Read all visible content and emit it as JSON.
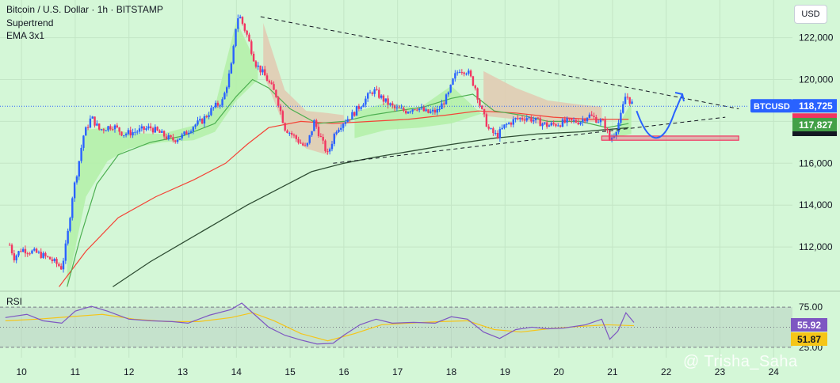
{
  "header": {
    "title": "Bitcoin / U.S. Dollar · 1h · BITSTAMP",
    "indicator_1": "Supertrend",
    "indicator_2": "EMA 3x1"
  },
  "currency_button": "USD",
  "rsi_label": "RSI",
  "watermark": "@ Trisha_Saha",
  "colors": {
    "background": "#d4f7d7",
    "up_candle": "#2962ff",
    "down_candle": "#f23661",
    "ema_fast": "#4caf50",
    "ema_mid": "#f44336",
    "ema_slow": "#2e4d33",
    "rsi_line": "#7e57c2",
    "rsi_ma": "#f5c518",
    "supertrend_up_fill": "#b3f0a8",
    "supertrend_down_fill": "#e2c9b2",
    "projection": "#2962ff"
  },
  "chart_data": {
    "type": "candlestick",
    "symbol": "BTCUSD",
    "x_ticks": [
      "10",
      "11",
      "12",
      "13",
      "14",
      "15",
      "16",
      "17",
      "18",
      "19",
      "20",
      "21",
      "22",
      "23",
      "24"
    ],
    "y_ticks": [
      "122,000",
      "120,000",
      "118,000",
      "116,000",
      "114,000",
      "112,000"
    ],
    "ylim": [
      110000,
      123800
    ],
    "xlim": [
      9.6,
      24.35
    ],
    "price_path": [
      [
        9.78,
        112100
      ],
      [
        9.86,
        111500
      ],
      [
        10.0,
        111900
      ],
      [
        10.3,
        111700
      ],
      [
        10.55,
        111400
      ],
      [
        10.75,
        111000
      ],
      [
        10.85,
        112400
      ],
      [
        10.95,
        114500
      ],
      [
        11.05,
        115800
      ],
      [
        11.15,
        117300
      ],
      [
        11.3,
        118200
      ],
      [
        11.45,
        117600
      ],
      [
        11.7,
        117800
      ],
      [
        11.9,
        117400
      ],
      [
        12.1,
        117500
      ],
      [
        12.4,
        117700
      ],
      [
        12.6,
        117400
      ],
      [
        12.8,
        117100
      ],
      [
        13.0,
        117300
      ],
      [
        13.2,
        117800
      ],
      [
        13.35,
        118000
      ],
      [
        13.55,
        118600
      ],
      [
        13.75,
        119000
      ],
      [
        13.92,
        120800
      ],
      [
        14.0,
        122800
      ],
      [
        14.05,
        123100
      ],
      [
        14.2,
        122100
      ],
      [
        14.35,
        120800
      ],
      [
        14.55,
        120100
      ],
      [
        14.75,
        119200
      ],
      [
        14.9,
        117700
      ],
      [
        15.1,
        117200
      ],
      [
        15.3,
        116700
      ],
      [
        15.45,
        118000
      ],
      [
        15.6,
        117000
      ],
      [
        15.7,
        116400
      ],
      [
        15.85,
        117600
      ],
      [
        16.0,
        118000
      ],
      [
        16.15,
        118300
      ],
      [
        16.35,
        118900
      ],
      [
        16.55,
        119500
      ],
      [
        16.75,
        119000
      ],
      [
        16.95,
        118600
      ],
      [
        17.15,
        118500
      ],
      [
        17.35,
        118700
      ],
      [
        17.55,
        118400
      ],
      [
        17.75,
        118500
      ],
      [
        17.95,
        119300
      ],
      [
        18.05,
        120100
      ],
      [
        18.15,
        120500
      ],
      [
        18.3,
        120400
      ],
      [
        18.45,
        119600
      ],
      [
        18.55,
        118600
      ],
      [
        18.7,
        117600
      ],
      [
        18.85,
        117300
      ],
      [
        19.0,
        117800
      ],
      [
        19.2,
        118100
      ],
      [
        19.4,
        118200
      ],
      [
        19.6,
        118000
      ],
      [
        19.8,
        117800
      ],
      [
        20.0,
        117900
      ],
      [
        20.2,
        118000
      ],
      [
        20.4,
        118000
      ],
      [
        20.55,
        118300
      ],
      [
        20.7,
        118100
      ],
      [
        20.85,
        117900
      ],
      [
        20.95,
        117100
      ],
      [
        21.05,
        117500
      ],
      [
        21.15,
        118200
      ],
      [
        21.25,
        119300
      ],
      [
        21.32,
        119000
      ],
      [
        21.4,
        118725
      ]
    ],
    "ema_fast": [
      [
        10.85,
        110100
      ],
      [
        11.1,
        112500
      ],
      [
        11.4,
        115000
      ],
      [
        11.8,
        116400
      ],
      [
        12.4,
        117000
      ],
      [
        13.0,
        117300
      ],
      [
        13.6,
        117900
      ],
      [
        14.0,
        119200
      ],
      [
        14.3,
        120000
      ],
      [
        14.6,
        119600
      ],
      [
        15.0,
        118600
      ],
      [
        15.5,
        117900
      ],
      [
        16.0,
        118000
      ],
      [
        16.5,
        118300
      ],
      [
        17.0,
        118500
      ],
      [
        17.5,
        118700
      ],
      [
        18.0,
        119100
      ],
      [
        18.4,
        119300
      ],
      [
        18.8,
        118500
      ],
      [
        19.3,
        118300
      ],
      [
        19.8,
        118000
      ],
      [
        20.4,
        118000
      ],
      [
        20.9,
        117700
      ],
      [
        21.3,
        117900
      ]
    ],
    "ema_mid": [
      [
        10.7,
        110100
      ],
      [
        11.2,
        111800
      ],
      [
        11.8,
        113400
      ],
      [
        12.5,
        114400
      ],
      [
        13.2,
        115200
      ],
      [
        13.8,
        116000
      ],
      [
        14.2,
        116900
      ],
      [
        14.6,
        117700
      ],
      [
        15.2,
        118000
      ],
      [
        15.8,
        117900
      ],
      [
        16.5,
        118000
      ],
      [
        17.2,
        118100
      ],
      [
        17.9,
        118300
      ],
      [
        18.5,
        118500
      ],
      [
        19.2,
        118400
      ],
      [
        19.9,
        118200
      ],
      [
        20.6,
        118100
      ],
      [
        21.3,
        118100
      ]
    ],
    "ema_slow": [
      [
        11.7,
        110100
      ],
      [
        12.4,
        111300
      ],
      [
        13.0,
        112200
      ],
      [
        13.6,
        113100
      ],
      [
        14.2,
        114000
      ],
      [
        14.8,
        114800
      ],
      [
        15.4,
        115600
      ],
      [
        16.0,
        116000
      ],
      [
        16.6,
        116300
      ],
      [
        17.3,
        116600
      ],
      [
        18.0,
        116900
      ],
      [
        18.8,
        117200
      ],
      [
        19.6,
        117400
      ],
      [
        20.4,
        117500
      ],
      [
        21.3,
        117700
      ]
    ],
    "supertrend_bands": [
      {
        "trend": "up",
        "x": [
          10.85,
          11.2,
          11.6,
          12.0,
          12.6,
          13.2,
          13.6,
          14.0,
          14.4
        ],
        "level": [
          110100,
          114400,
          116100,
          116700,
          117000,
          117100,
          117500,
          119000,
          120000
        ]
      },
      {
        "trend": "down",
        "x": [
          14.5,
          14.9,
          15.3,
          15.7,
          16.0
        ],
        "level": [
          122700,
          119500,
          118500,
          118400,
          118300
        ]
      },
      {
        "trend": "up",
        "x": [
          16.2,
          16.8,
          17.4,
          18.0,
          18.6
        ],
        "level": [
          117200,
          117600,
          117700,
          117900,
          118400
        ]
      },
      {
        "trend": "down",
        "x": [
          18.6,
          19.2,
          19.8,
          20.4,
          20.8
        ],
        "level": [
          120400,
          119600,
          119000,
          118800,
          118700
        ]
      },
      {
        "trend": "up",
        "x": [
          21.0,
          21.35
        ],
        "level": [
          117200,
          117400
        ]
      }
    ],
    "trendlines": [
      {
        "name": "upper",
        "x": [
          14.45,
          23.35
        ],
        "y": [
          123000,
          118600
        ]
      },
      {
        "name": "lower",
        "x": [
          15.8,
          23.1
        ],
        "y": [
          116000,
          118200
        ]
      }
    ],
    "support_zone": {
      "x": [
        20.8,
        23.35
      ],
      "y": [
        117100,
        117300
      ]
    },
    "projection_path": [
      [
        21.45,
        118500
      ],
      [
        21.7,
        117300
      ],
      [
        21.95,
        117400
      ],
      [
        22.15,
        118400
      ],
      [
        22.3,
        119300
      ]
    ],
    "last_price": {
      "symbol": "BTCUSD",
      "value": "118,725"
    },
    "price_levels": [
      {
        "value": "117,827",
        "color": "#43a047"
      }
    ],
    "rsi": {
      "levels": [
        75,
        50,
        25
      ],
      "tick_labels": [
        "75.00",
        "25.00"
      ],
      "current_rsi": "55.92",
      "current_ma": "51.87",
      "rsi_path": [
        [
          9.7,
          62
        ],
        [
          10.1,
          66
        ],
        [
          10.4,
          58
        ],
        [
          10.75,
          55
        ],
        [
          11.0,
          70
        ],
        [
          11.3,
          76
        ],
        [
          11.6,
          70
        ],
        [
          12.0,
          60
        ],
        [
          12.4,
          58
        ],
        [
          12.8,
          57
        ],
        [
          13.1,
          55
        ],
        [
          13.5,
          65
        ],
        [
          13.9,
          72
        ],
        [
          14.1,
          80
        ],
        [
          14.35,
          65
        ],
        [
          14.6,
          50
        ],
        [
          14.9,
          40
        ],
        [
          15.2,
          34
        ],
        [
          15.5,
          29
        ],
        [
          15.8,
          30
        ],
        [
          16.0,
          40
        ],
        [
          16.3,
          53
        ],
        [
          16.6,
          60
        ],
        [
          16.9,
          55
        ],
        [
          17.3,
          56
        ],
        [
          17.7,
          55
        ],
        [
          18.0,
          63
        ],
        [
          18.3,
          60
        ],
        [
          18.6,
          44
        ],
        [
          18.9,
          36
        ],
        [
          19.2,
          47
        ],
        [
          19.5,
          50
        ],
        [
          19.8,
          48
        ],
        [
          20.1,
          49
        ],
        [
          20.5,
          53
        ],
        [
          20.8,
          60
        ],
        [
          20.95,
          35
        ],
        [
          21.1,
          45
        ],
        [
          21.25,
          68
        ],
        [
          21.4,
          55.92
        ]
      ],
      "ma_path": [
        [
          9.7,
          58
        ],
        [
          10.3,
          60
        ],
        [
          10.9,
          63
        ],
        [
          11.5,
          66
        ],
        [
          12.1,
          60
        ],
        [
          12.7,
          57
        ],
        [
          13.3,
          57
        ],
        [
          13.9,
          62
        ],
        [
          14.3,
          68
        ],
        [
          14.7,
          58
        ],
        [
          15.2,
          42
        ],
        [
          15.7,
          33
        ],
        [
          16.2,
          42
        ],
        [
          16.7,
          53
        ],
        [
          17.2,
          55
        ],
        [
          17.8,
          57
        ],
        [
          18.3,
          58
        ],
        [
          18.8,
          47
        ],
        [
          19.3,
          44
        ],
        [
          19.8,
          48
        ],
        [
          20.4,
          51
        ],
        [
          20.9,
          53
        ],
        [
          21.4,
          51.87
        ]
      ]
    }
  }
}
